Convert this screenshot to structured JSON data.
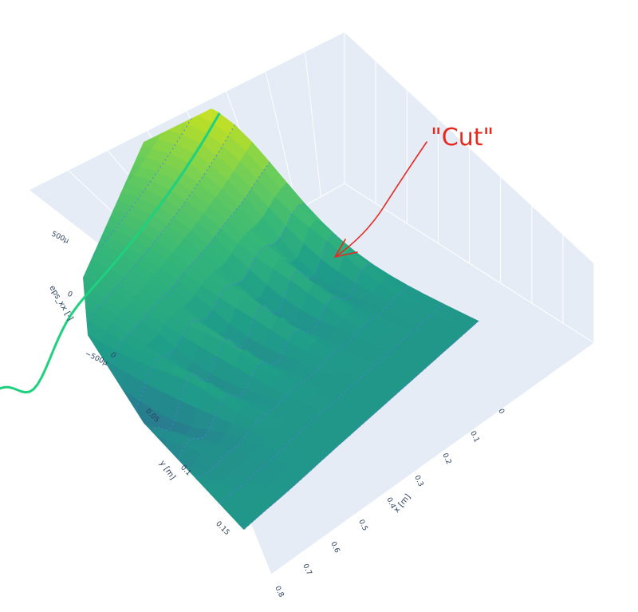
{
  "chart_data": {
    "type": "surface",
    "x_axis": {
      "title": "x [m]",
      "range": [
        0,
        0.8
      ],
      "ticks": [
        {
          "value": 0,
          "label": "0"
        },
        {
          "value": 0.1,
          "label": "0.1"
        },
        {
          "value": 0.2,
          "label": "0.2"
        },
        {
          "value": 0.3,
          "label": "0.3"
        },
        {
          "value": 0.4,
          "label": "0.4"
        },
        {
          "value": 0.5,
          "label": "0.5"
        },
        {
          "value": 0.6,
          "label": "0.6"
        },
        {
          "value": 0.7,
          "label": "0.7"
        },
        {
          "value": 0.8,
          "label": "0.8"
        }
      ]
    },
    "y_axis": {
      "title": "y [m]",
      "range": [
        0,
        0.17
      ],
      "ticks": [
        {
          "value": 0,
          "label": "0"
        },
        {
          "value": 0.05,
          "label": "0.05"
        },
        {
          "value": 0.1,
          "label": "0.1"
        },
        {
          "value": 0.15,
          "label": "0.15"
        }
      ]
    },
    "z_axis": {
      "title": "eps_xx [-]",
      "unit_scale": 1e-06,
      "range": [
        -700,
        700
      ],
      "ticks": [
        {
          "value": 500,
          "label": "500μ"
        },
        {
          "value": 0,
          "label": "0"
        },
        {
          "value": -500,
          "label": "−500μ"
        }
      ]
    },
    "colorscale": "viridis",
    "grid": true,
    "background_color": "#e5ecf6",
    "highlight_line_color": "#1fd17e",
    "annotation": {
      "text": "\"Cut\"",
      "color": "#e8281e"
    }
  }
}
